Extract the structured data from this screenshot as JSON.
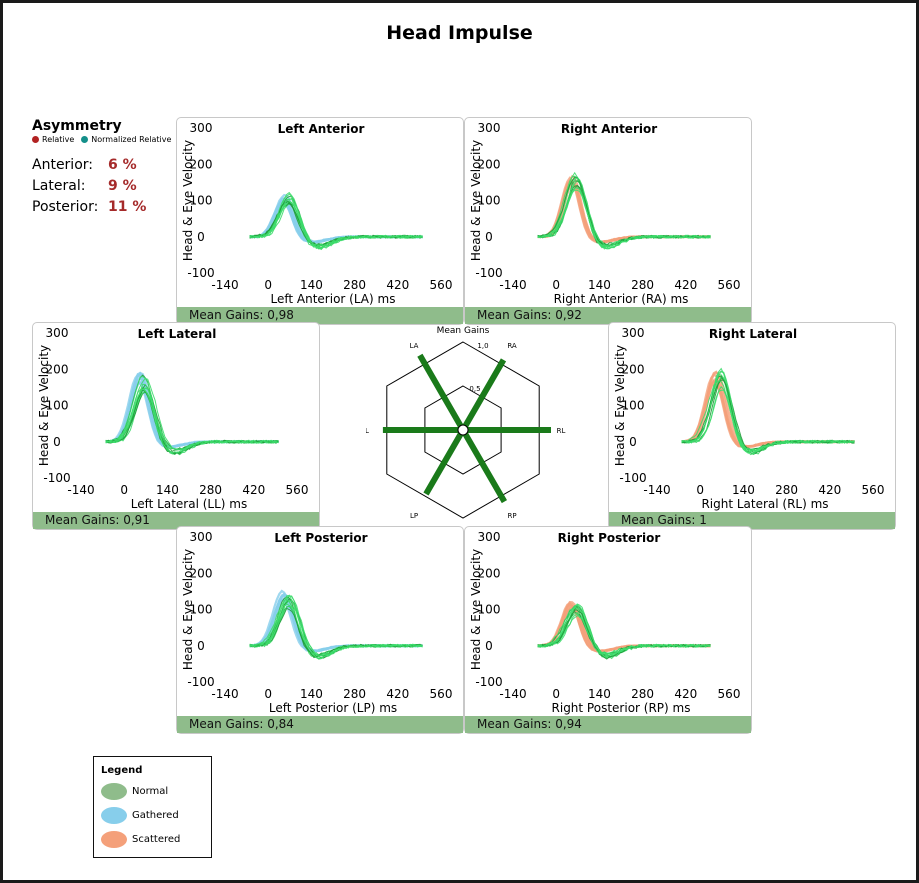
{
  "title": "Head Impulse",
  "asymmetry": {
    "heading": "Asymmetry",
    "legend": [
      {
        "label": "Relative",
        "color": "#b22222"
      },
      {
        "label": "Normalized Relative",
        "color": "#148f8a"
      }
    ],
    "rows": [
      {
        "label": "Anterior:",
        "value": "6 %"
      },
      {
        "label": "Lateral:",
        "value": "9 %"
      },
      {
        "label": "Posterior:",
        "value": "11 %"
      }
    ]
  },
  "legend": {
    "title": "Legend",
    "items": [
      {
        "label": "Normal",
        "color": "#8fbc8b"
      },
      {
        "label": "Gathered",
        "color": "#87ceeb"
      },
      {
        "label": "Scattered",
        "color": "#f4a07a"
      }
    ]
  },
  "chart_data": [
    {
      "id": "la",
      "type": "line",
      "title": "Left Anterior",
      "xlabel": "Left Anterior (LA) ms",
      "ylabel": "Head & Eye Velocity",
      "xticks": [
        -140,
        0,
        140,
        280,
        420,
        560
      ],
      "yticks": [
        300,
        200,
        100,
        0,
        -100
      ],
      "xlim": [
        -140,
        560
      ],
      "ylim": [
        -100,
        300
      ],
      "head_series": "Gathered",
      "head_peak": 115,
      "eye_peak": 118,
      "mean_gain_label": "Mean Gains: 0,98",
      "mean_gain": 0.98
    },
    {
      "id": "ra",
      "type": "line",
      "title": "Right Anterior",
      "xlabel": "Right Anterior (RA) ms",
      "ylabel": "Head & Eye Velocity",
      "xticks": [
        -140,
        0,
        140,
        280,
        420,
        560
      ],
      "yticks": [
        300,
        200,
        100,
        0,
        -100
      ],
      "xlim": [
        -140,
        560
      ],
      "ylim": [
        -100,
        300
      ],
      "head_series": "Scattered",
      "head_peak": 165,
      "eye_peak": 170,
      "mean_gain_label": "Mean Gains: 0,92",
      "mean_gain": 0.92
    },
    {
      "id": "ll",
      "type": "line",
      "title": "Left Lateral",
      "xlabel": "Left Lateral (LL) ms",
      "ylabel": "Head & Eye Velocity",
      "xticks": [
        -140,
        0,
        140,
        280,
        420,
        560
      ],
      "yticks": [
        300,
        200,
        100,
        0,
        -100
      ],
      "xlim": [
        -140,
        560
      ],
      "ylim": [
        -100,
        300
      ],
      "head_series": "Gathered",
      "head_peak": 185,
      "eye_peak": 180,
      "mean_gain_label": "Mean Gains: 0,91",
      "mean_gain": 0.91
    },
    {
      "id": "rl",
      "type": "line",
      "title": "Right Lateral",
      "xlabel": "Right Lateral (RL) ms",
      "ylabel": "Head & Eye Velocity",
      "xticks": [
        -140,
        0,
        140,
        280,
        420,
        560
      ],
      "yticks": [
        300,
        200,
        100,
        0,
        -100
      ],
      "xlim": [
        -140,
        560
      ],
      "ylim": [
        -100,
        300
      ],
      "head_series": "Scattered",
      "head_peak": 190,
      "eye_peak": 195,
      "mean_gain_label": "Mean Gains: 1",
      "mean_gain": 1
    },
    {
      "id": "lp",
      "type": "line",
      "title": "Left Posterior",
      "xlabel": "Left Posterior (LP) ms",
      "ylabel": "Head & Eye Velocity",
      "xticks": [
        -140,
        0,
        140,
        280,
        420,
        560
      ],
      "yticks": [
        300,
        200,
        100,
        0,
        -100
      ],
      "xlim": [
        -140,
        560
      ],
      "ylim": [
        -100,
        300
      ],
      "head_series": "Gathered",
      "head_peak": 150,
      "eye_peak": 140,
      "mean_gain_label": "Mean Gains: 0,84",
      "mean_gain": 0.84
    },
    {
      "id": "rp",
      "type": "line",
      "title": "Right Posterior",
      "xlabel": "Right Posterior (RP) ms",
      "ylabel": "Head & Eye Velocity",
      "xticks": [
        -140,
        0,
        140,
        280,
        420,
        560
      ],
      "yticks": [
        300,
        200,
        100,
        0,
        -100
      ],
      "xlim": [
        -140,
        560
      ],
      "ylim": [
        -100,
        300
      ],
      "head_series": "Scattered",
      "head_peak": 120,
      "eye_peak": 115,
      "mean_gain_label": "Mean Gains: 0,94",
      "mean_gain": 0.94
    },
    {
      "id": "radar",
      "type": "radar",
      "title": "Mean Gains",
      "ticks": [
        "1,0",
        "0,5"
      ],
      "rmax": 1.0,
      "axes": [
        "LA",
        "RA",
        "RL",
        "RP",
        "LP",
        "LL"
      ],
      "values": [
        0.98,
        0.92,
        1.0,
        0.94,
        0.84,
        0.91
      ]
    }
  ]
}
